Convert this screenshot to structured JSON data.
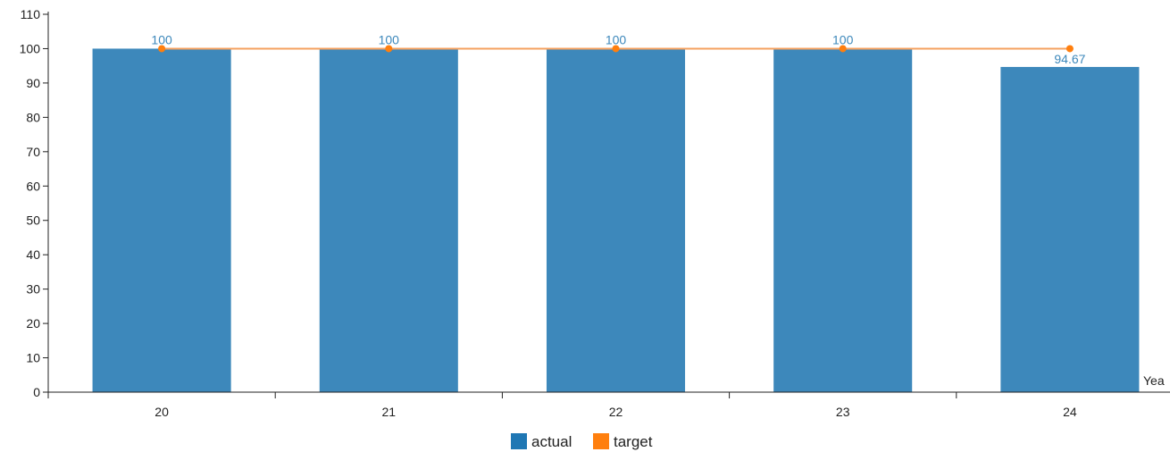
{
  "chart_data": {
    "type": "bar",
    "categories": [
      "20",
      "21",
      "22",
      "23",
      "24"
    ],
    "series": [
      {
        "name": "actual",
        "type": "bar",
        "values": [
          100,
          100,
          100,
          100,
          94.67
        ],
        "labels": [
          "100",
          "100",
          "100",
          "100",
          "94.67"
        ]
      },
      {
        "name": "target",
        "type": "line",
        "values": [
          100,
          100,
          100,
          100,
          100
        ]
      }
    ],
    "xlabel": "Yea",
    "ylabel": "",
    "ylim": [
      0,
      110
    ],
    "yticks": [
      0,
      10,
      20,
      30,
      40,
      50,
      60,
      70,
      80,
      90,
      100,
      110
    ],
    "grid": false,
    "legend_position": "bottom-center"
  },
  "colors": {
    "actual": "#3d88bb",
    "actual_swatch": "#1f77b4",
    "actual_label": "#3d88bb",
    "target": "#ff7f0e",
    "target_line": "#f5a15f",
    "axis": "#222222"
  }
}
